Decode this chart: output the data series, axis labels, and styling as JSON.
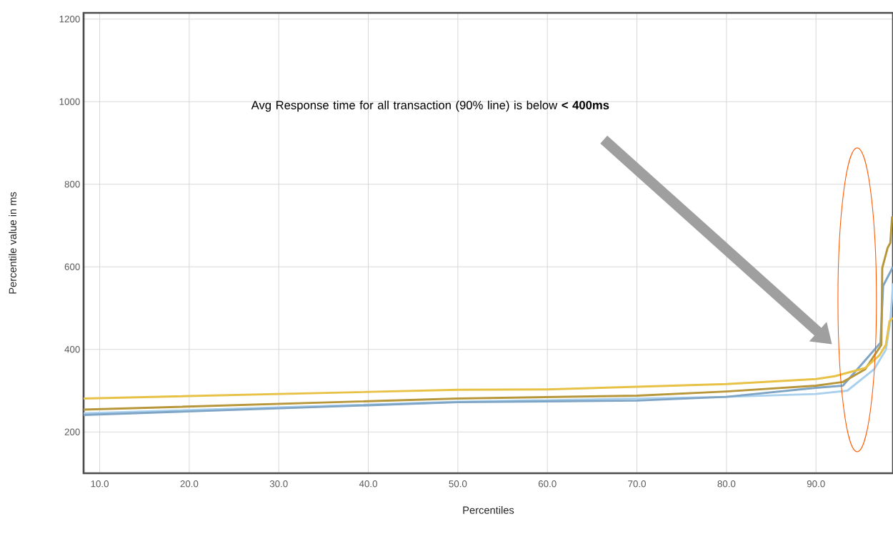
{
  "chart_data": {
    "type": "line",
    "xlabel": "Percentiles",
    "ylabel": "Percentile value in ms",
    "annotations": [
      "Avg Response time for all transaction (90% line) is below **< 400ms**"
    ],
    "xlim": [
      8.2,
      98.6
    ],
    "ylim": [
      100,
      1215
    ],
    "xticks": [
      {
        "value": 10,
        "label": "10.0"
      },
      {
        "value": 20,
        "label": "20.0"
      },
      {
        "value": 30,
        "label": "30.0"
      },
      {
        "value": 40,
        "label": "40.0"
      },
      {
        "value": 50,
        "label": "50.0"
      },
      {
        "value": 60,
        "label": "60.0"
      },
      {
        "value": 70,
        "label": "70.0"
      },
      {
        "value": 80,
        "label": "80.0"
      },
      {
        "value": 90,
        "label": "90.0"
      }
    ],
    "yticks": [
      200,
      400,
      600,
      800,
      1000,
      1200
    ],
    "grid": true,
    "series": [
      {
        "color": "#a9d0ee",
        "x": [
          8.2,
          50,
          80,
          90,
          93.5,
          96.5,
          97.8,
          98.3,
          98.6
        ],
        "values": [
          245,
          273,
          285,
          292,
          300,
          352,
          399,
          468,
          560
        ]
      },
      {
        "color": "#7ea4c6",
        "x": [
          8.2,
          50,
          70,
          80,
          90,
          93,
          95.6,
          97.2,
          97.5,
          98.6
        ],
        "values": [
          241,
          272,
          276,
          285,
          307,
          312,
          376,
          416,
          554,
          600
        ]
      },
      {
        "color": "#b8973a",
        "x": [
          8.2,
          50,
          70,
          80,
          90,
          93,
          95.5,
          97.3,
          97.4,
          98,
          98.3,
          98.5
        ],
        "values": [
          254,
          281,
          288,
          298,
          312,
          321,
          352,
          411,
          597,
          646,
          658,
          722
        ]
      },
      {
        "color": "#e8c246",
        "x": [
          8.2,
          50,
          60,
          80,
          90,
          92.1,
          95.5,
          97.1,
          97.8,
          98.2,
          98.6
        ],
        "values": [
          281,
          302,
          303,
          316,
          328,
          335,
          355,
          386,
          411,
          468,
          476
        ]
      }
    ]
  }
}
